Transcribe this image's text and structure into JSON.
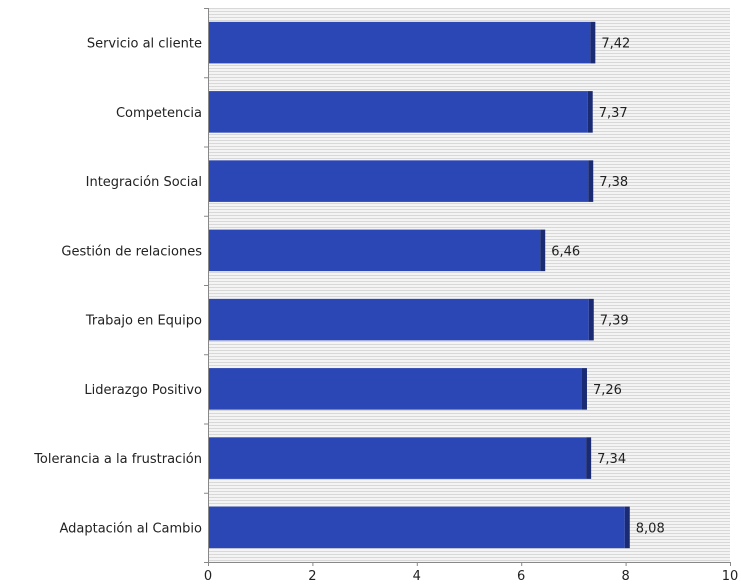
{
  "chart_data": {
    "type": "bar",
    "orientation": "horizontal",
    "categories": [
      "Servicio al cliente",
      "Competencia",
      "Integración Social",
      "Gestión de relaciones",
      "Trabajo en Equipo",
      "Liderazgo Positivo",
      "Tolerancia a la frustración",
      "Adaptación al Cambio"
    ],
    "values": [
      7.42,
      7.37,
      7.38,
      6.46,
      7.39,
      7.26,
      7.34,
      8.08
    ],
    "value_labels": [
      "7,42",
      "7,37",
      "7,38",
      "6,46",
      "7,39",
      "7,26",
      "7,34",
      "8,08"
    ],
    "x_ticks": [
      "0",
      "2",
      "4",
      "6",
      "8",
      "10"
    ],
    "xlim": [
      0,
      10
    ],
    "title": "",
    "xlabel": "",
    "ylabel": "",
    "grid": "horizontal stripes",
    "legend": "none",
    "colors": {
      "bar": "#2b46b5",
      "bar_edge": "#1a2a73",
      "grid_line": "#d8d8d8",
      "axis": "#888888"
    }
  }
}
